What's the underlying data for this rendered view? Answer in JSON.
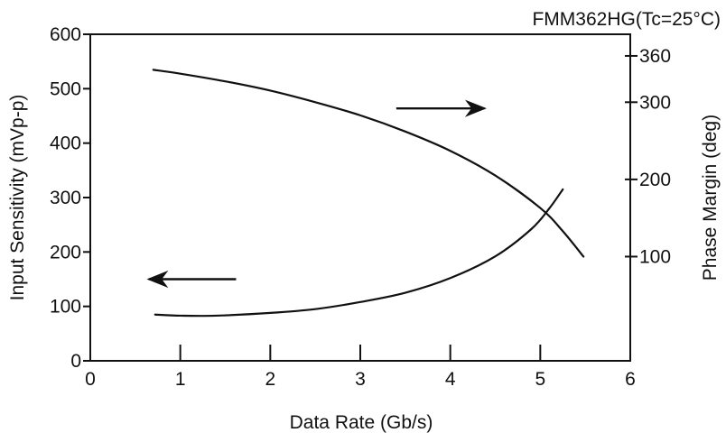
{
  "chart_data": {
    "type": "line",
    "title": "FMM362HG(Tc=25°C)",
    "xlabel": "Data Rate (Gb/s)",
    "ylabel_left": "Input Sensitivity (mVp-p)",
    "ylabel_right": "Phase Margin (deg)",
    "xlim": [
      0,
      6
    ],
    "ylim_left": [
      0,
      600
    ],
    "ylim_right": [
      -35,
      388
    ],
    "x_ticks": [
      "0",
      "1",
      "2",
      "3",
      "4",
      "5",
      "6"
    ],
    "y_left_ticks": [
      "0",
      "100",
      "200",
      "300",
      "400",
      "500",
      "600"
    ],
    "y_right_ticks": [
      "100",
      "200",
      "300",
      "360"
    ],
    "grid": false,
    "series": [
      {
        "axis": "left",
        "color": "#111111",
        "x": [
          0.72,
          1.0,
          1.4,
          2.0,
          2.5,
          3.0,
          3.5,
          4.0,
          4.5,
          4.9,
          5.1,
          5.25
        ],
        "y": [
          85,
          83,
          83,
          88,
          95,
          108,
          125,
          152,
          192,
          242,
          280,
          315
        ]
      },
      {
        "axis": "right",
        "color": "#111111",
        "x": [
          0.7,
          1.0,
          1.5,
          2.0,
          2.5,
          3.0,
          3.5,
          4.0,
          4.5,
          5.0,
          5.25,
          5.48
        ],
        "y": [
          342,
          337,
          327,
          315,
          300,
          283,
          262,
          237,
          205,
          163,
          133,
          100
        ]
      }
    ],
    "annotations": [
      {
        "type": "arrow",
        "direction": "left",
        "x_from": 1.62,
        "x_to": 0.65,
        "y": 150,
        "axis": "left",
        "meaning": "left-axis"
      },
      {
        "type": "arrow",
        "direction": "right",
        "x_from": 3.4,
        "x_to": 4.38,
        "y": 292,
        "axis": "right",
        "meaning": "right-axis"
      }
    ]
  }
}
